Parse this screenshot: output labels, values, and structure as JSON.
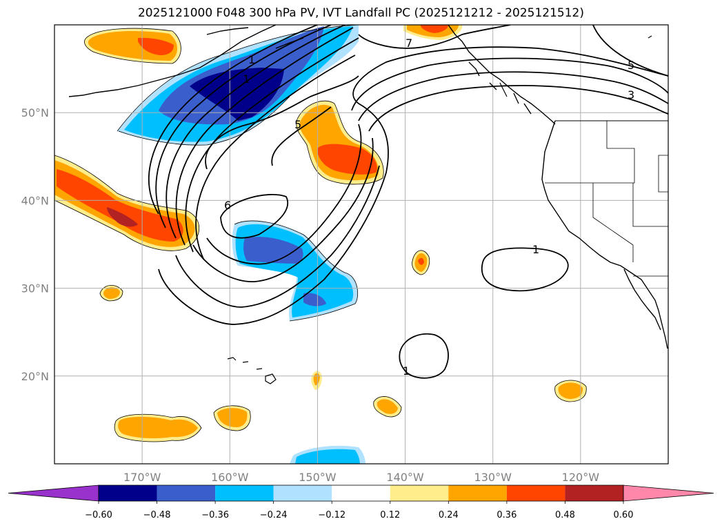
{
  "title": "2025121000 F048 300 hPa PV, IVT Landfall PC (2025121212 - 2025121512)",
  "map": {
    "lon_range": [
      -180,
      -110
    ],
    "lat_range": [
      10,
      60
    ],
    "lat_ticks": [
      {
        "value": 50,
        "label": "50°N"
      },
      {
        "value": 40,
        "label": "40°N"
      },
      {
        "value": 30,
        "label": "30°N"
      },
      {
        "value": 20,
        "label": "20°N"
      }
    ],
    "lon_ticks": [
      {
        "value": -170,
        "label": "170°W"
      },
      {
        "value": -160,
        "label": "160°W"
      },
      {
        "value": -150,
        "label": "150°W"
      },
      {
        "value": -140,
        "label": "140°W"
      },
      {
        "value": -130,
        "label": "130°W"
      },
      {
        "value": -120,
        "label": "120°W"
      }
    ],
    "gridlines": true
  },
  "contour_labels": [
    "1",
    "1",
    "1",
    "1",
    "3",
    "5",
    "6",
    "5",
    "7"
  ],
  "colorbar": {
    "levels": [
      -0.6,
      -0.48,
      -0.36,
      -0.24,
      -0.12,
      0.12,
      0.24,
      0.36,
      0.48,
      0.6
    ],
    "tick_labels": [
      "−0.60",
      "−0.48",
      "−0.36",
      "−0.24",
      "−0.12",
      "0.12",
      "0.24",
      "0.36",
      "0.48",
      "0.60"
    ],
    "colors": [
      "#9932cc",
      "#00008b",
      "#3a5fcd",
      "#00bfff",
      "#b0e2ff",
      "#ffffff",
      "#ffec8b",
      "#ffa500",
      "#ff4500",
      "#b22222",
      "#ff88aa"
    ]
  }
}
